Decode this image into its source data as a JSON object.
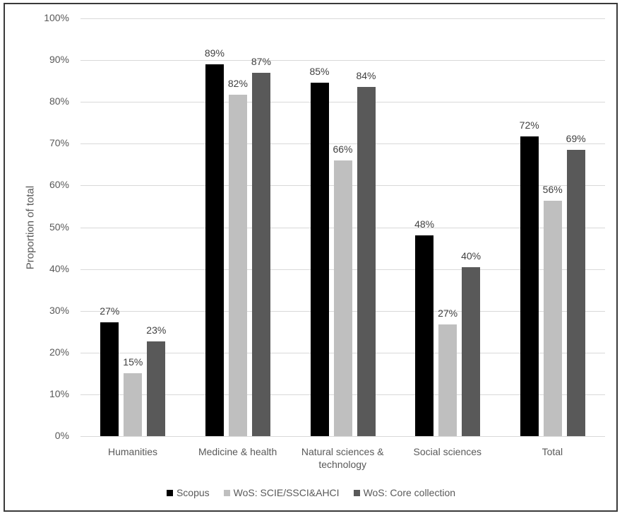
{
  "chart_data": {
    "type": "bar",
    "title": "",
    "xlabel": "",
    "ylabel": "Proportion of total",
    "ylim": [
      0,
      100
    ],
    "yticks": [
      "0%",
      "10%",
      "20%",
      "30%",
      "40%",
      "50%",
      "60%",
      "70%",
      "80%",
      "90%",
      "100%"
    ],
    "grid": true,
    "legend_position": "bottom",
    "categories": [
      "Humanities",
      "Medicine & health",
      "Natural sciences & technology",
      "Social sciences",
      "Total"
    ],
    "category_lines": [
      [
        "Humanities"
      ],
      [
        "Medicine & health"
      ],
      [
        "Natural sciences &",
        "technology"
      ],
      [
        "Social sciences"
      ],
      [
        "Total"
      ]
    ],
    "series": [
      {
        "name": "Scopus",
        "color": "#000000",
        "values": [
          27.2,
          89.0,
          84.6,
          48.0,
          71.7
        ],
        "labels": [
          "27%",
          "89%",
          "85%",
          "48%",
          "72%"
        ]
      },
      {
        "name": "WoS: SCIE/SSCI&AHCI",
        "color": "#bfbfbf",
        "values": [
          15.0,
          81.7,
          66.0,
          26.7,
          56.3
        ],
        "labels": [
          "15%",
          "82%",
          "66%",
          "27%",
          "56%"
        ]
      },
      {
        "name": "WoS: Core collection",
        "color": "#595959",
        "values": [
          22.6,
          87.0,
          83.6,
          40.4,
          68.6
        ],
        "labels": [
          "23%",
          "87%",
          "84%",
          "40%",
          "69%"
        ]
      }
    ]
  }
}
